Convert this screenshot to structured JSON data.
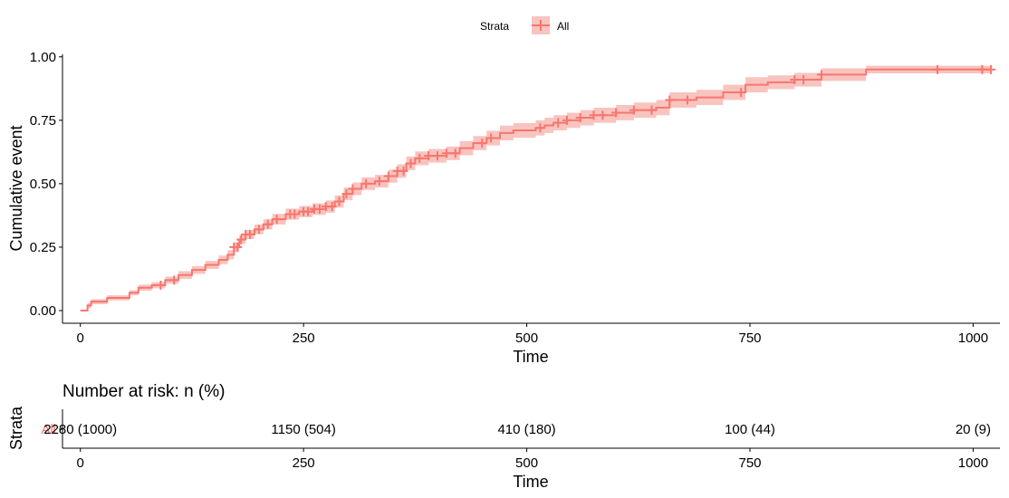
{
  "chart_data": [
    {
      "type": "line",
      "title": "",
      "legend": {
        "title": "Strata",
        "position": "top",
        "entries": [
          {
            "label": "All",
            "color": "#F8766D"
          }
        ]
      },
      "xlabel": "Time",
      "ylabel": "Cumulative event",
      "xlim": [
        -20,
        1030
      ],
      "ylim": [
        -0.05,
        1.01
      ],
      "xticks": [
        0,
        250,
        500,
        750,
        1000
      ],
      "xtick_labels": [
        "0",
        "250",
        "500",
        "750",
        "1000"
      ],
      "yticks": [
        0.0,
        0.25,
        0.5,
        0.75,
        1.0
      ],
      "ytick_labels": [
        "0.00",
        "0.25",
        "0.50",
        "0.75",
        "1.00"
      ],
      "grid": false,
      "colors": {
        "line": "#F8766D",
        "band": "#F8C4C0"
      },
      "series": [
        {
          "name": "All",
          "step": true,
          "x": [
            0,
            8,
            12,
            30,
            55,
            65,
            80,
            95,
            110,
            125,
            140,
            155,
            165,
            172,
            178,
            185,
            195,
            205,
            215,
            230,
            245,
            260,
            275,
            285,
            295,
            305,
            315,
            330,
            345,
            355,
            365,
            375,
            390,
            410,
            425,
            440,
            455,
            470,
            485,
            500,
            510,
            520,
            530,
            545,
            560,
            575,
            600,
            620,
            645,
            660,
            690,
            720,
            745,
            770,
            800,
            830,
            880,
            960,
            1020
          ],
          "y": [
            0.0,
            0.02,
            0.035,
            0.05,
            0.07,
            0.09,
            0.1,
            0.12,
            0.14,
            0.16,
            0.18,
            0.2,
            0.22,
            0.25,
            0.28,
            0.3,
            0.32,
            0.34,
            0.36,
            0.38,
            0.39,
            0.4,
            0.41,
            0.43,
            0.46,
            0.48,
            0.5,
            0.51,
            0.53,
            0.55,
            0.58,
            0.6,
            0.61,
            0.62,
            0.64,
            0.66,
            0.68,
            0.7,
            0.71,
            0.71,
            0.72,
            0.73,
            0.74,
            0.75,
            0.76,
            0.77,
            0.78,
            0.79,
            0.8,
            0.83,
            0.84,
            0.86,
            0.89,
            0.9,
            0.91,
            0.93,
            0.95,
            0.95,
            0.95
          ],
          "ci_lower": [
            0.0,
            0.01,
            0.025,
            0.04,
            0.06,
            0.078,
            0.088,
            0.106,
            0.125,
            0.145,
            0.164,
            0.183,
            0.202,
            0.23,
            0.262,
            0.282,
            0.301,
            0.32,
            0.339,
            0.358,
            0.368,
            0.377,
            0.386,
            0.406,
            0.435,
            0.455,
            0.475,
            0.485,
            0.504,
            0.523,
            0.553,
            0.573,
            0.583,
            0.593,
            0.612,
            0.632,
            0.651,
            0.671,
            0.681,
            0.681,
            0.69,
            0.7,
            0.71,
            0.72,
            0.73,
            0.74,
            0.75,
            0.76,
            0.77,
            0.8,
            0.81,
            0.83,
            0.86,
            0.873,
            0.883,
            0.905,
            0.935,
            0.935,
            0.935
          ],
          "ci_upper": [
            0.0,
            0.03,
            0.045,
            0.06,
            0.08,
            0.102,
            0.112,
            0.134,
            0.155,
            0.175,
            0.196,
            0.217,
            0.238,
            0.27,
            0.298,
            0.318,
            0.339,
            0.36,
            0.381,
            0.402,
            0.412,
            0.423,
            0.434,
            0.454,
            0.485,
            0.505,
            0.525,
            0.535,
            0.556,
            0.577,
            0.607,
            0.627,
            0.637,
            0.647,
            0.668,
            0.688,
            0.709,
            0.729,
            0.739,
            0.739,
            0.75,
            0.76,
            0.77,
            0.78,
            0.79,
            0.8,
            0.81,
            0.82,
            0.83,
            0.86,
            0.87,
            0.89,
            0.92,
            0.927,
            0.937,
            0.955,
            0.965,
            0.965,
            0.965
          ],
          "censor_x": [
            90,
            105,
            172,
            176,
            180,
            185,
            190,
            200,
            210,
            220,
            235,
            240,
            250,
            255,
            262,
            268,
            275,
            282,
            290,
            298,
            305,
            320,
            335,
            345,
            355,
            362,
            370,
            380,
            390,
            400,
            410,
            420,
            450,
            460,
            515,
            535,
            545,
            560,
            575,
            585,
            600,
            620,
            640,
            660,
            680,
            740,
            800,
            810,
            830,
            960,
            1010,
            1020
          ]
        }
      ]
    },
    {
      "type": "table",
      "title": "Number at risk: n (%)",
      "xlabel": "Time",
      "ylabel": "Strata",
      "xlim": [
        -20,
        1030
      ],
      "xticks": [
        0,
        250,
        500,
        750,
        1000
      ],
      "xtick_labels": [
        "0",
        "250",
        "500",
        "750",
        "1000"
      ],
      "rows": [
        {
          "stratum": "All",
          "color": "#F8766D",
          "times": [
            0,
            250,
            500,
            750,
            1000
          ],
          "values": [
            "2280 (1000)",
            "1150 (504)",
            "410 (180)",
            "100 (44)",
            "20 (9)"
          ]
        }
      ]
    }
  ]
}
